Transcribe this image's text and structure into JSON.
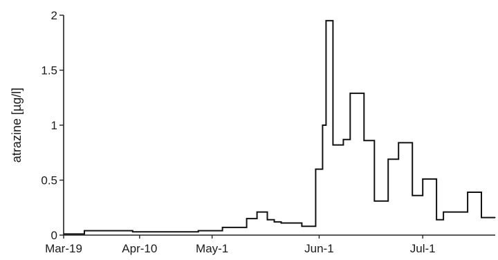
{
  "chart_data": {
    "type": "line",
    "step": true,
    "ylabel": "atrazine [µg/l]",
    "xlabel": "",
    "title": "",
    "ylim": [
      0,
      2
    ],
    "xlim": [
      "2000-03-19",
      "2000-07-22"
    ],
    "grid": false,
    "legend": "none",
    "y_ticks": [
      {
        "value": 0,
        "label": "0"
      },
      {
        "value": 0.5,
        "label": "0.5"
      },
      {
        "value": 1,
        "label": "1"
      },
      {
        "value": 1.5,
        "label": "1.5"
      },
      {
        "value": 2,
        "label": "2"
      }
    ],
    "x_ticks": [
      {
        "date": "2000-03-19",
        "label": "Mar-19"
      },
      {
        "date": "2000-04-10",
        "label": "Apr-10"
      },
      {
        "date": "2000-05-01",
        "label": "May-1"
      },
      {
        "date": "2000-06-01",
        "label": "Jun-1"
      },
      {
        "date": "2000-07-01",
        "label": "Jul-1"
      }
    ],
    "series": [
      {
        "color": "#111111",
        "points": [
          {
            "x": "2000-03-19",
            "y": 0.01
          },
          {
            "x": "2000-03-25",
            "y": 0.04
          },
          {
            "x": "2000-04-08",
            "y": 0.03
          },
          {
            "x": "2000-04-27",
            "y": 0.04
          },
          {
            "x": "2000-05-04",
            "y": 0.07
          },
          {
            "x": "2000-05-11",
            "y": 0.15
          },
          {
            "x": "2000-05-14",
            "y": 0.21
          },
          {
            "x": "2000-05-17",
            "y": 0.14
          },
          {
            "x": "2000-05-19",
            "y": 0.12
          },
          {
            "x": "2000-05-21",
            "y": 0.11
          },
          {
            "x": "2000-05-27",
            "y": 0.08
          },
          {
            "x": "2000-05-31",
            "y": 0.6
          },
          {
            "x": "2000-06-02",
            "y": 1.0
          },
          {
            "x": "2000-06-03",
            "y": 1.95
          },
          {
            "x": "2000-06-05",
            "y": 0.82
          },
          {
            "x": "2000-06-08",
            "y": 0.87
          },
          {
            "x": "2000-06-10",
            "y": 1.29
          },
          {
            "x": "2000-06-14",
            "y": 0.86
          },
          {
            "x": "2000-06-17",
            "y": 0.31
          },
          {
            "x": "2000-06-21",
            "y": 0.69
          },
          {
            "x": "2000-06-24",
            "y": 0.84
          },
          {
            "x": "2000-06-28",
            "y": 0.36
          },
          {
            "x": "2000-07-01",
            "y": 0.51
          },
          {
            "x": "2000-07-05",
            "y": 0.14
          },
          {
            "x": "2000-07-07",
            "y": 0.21
          },
          {
            "x": "2000-07-14",
            "y": 0.39
          },
          {
            "x": "2000-07-18",
            "y": 0.16
          },
          {
            "x": "2000-07-22",
            "y": 0.16
          }
        ]
      }
    ]
  }
}
